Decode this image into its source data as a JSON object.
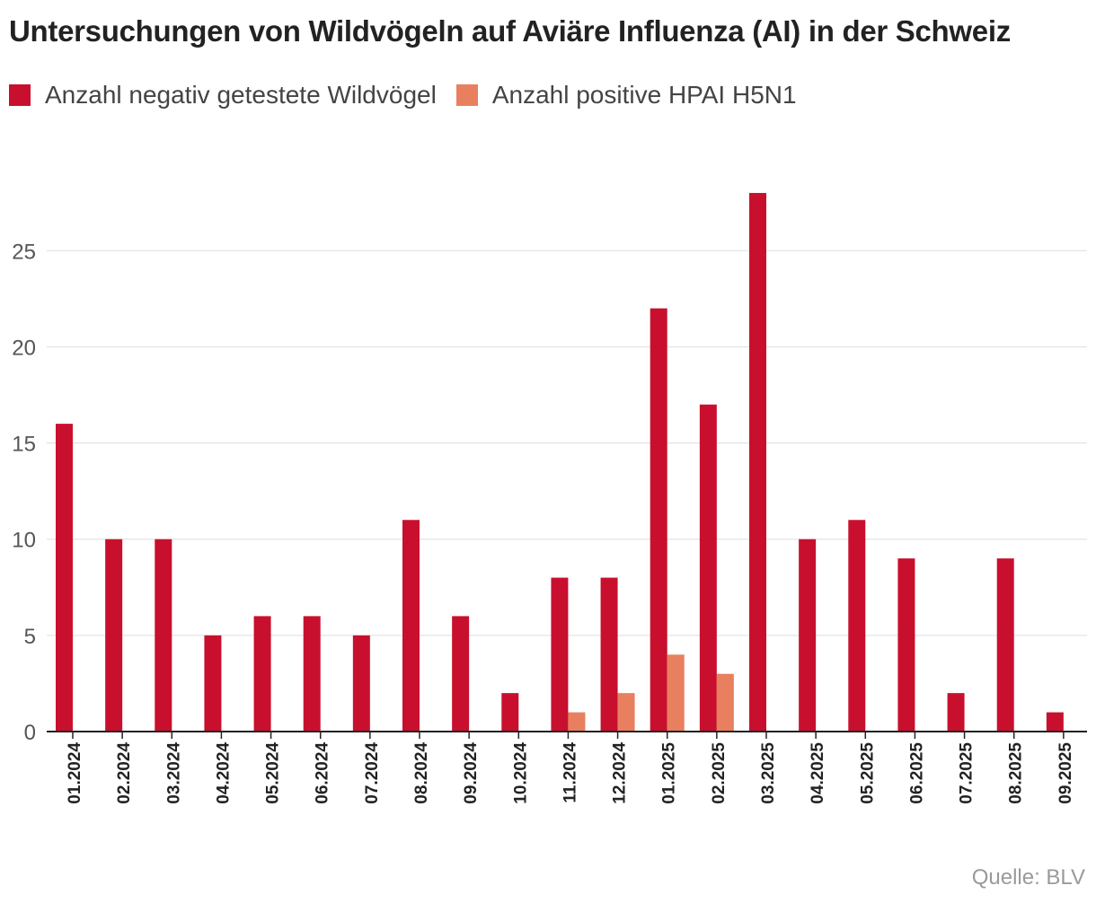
{
  "chart_data": {
    "type": "bar",
    "title": "Untersuchungen von Wildvögeln auf Aviäre Influenza (AI) in der Schweiz",
    "categories": [
      "01.2024",
      "02.2024",
      "03.2024",
      "04.2024",
      "05.2024",
      "06.2024",
      "07.2024",
      "08.2024",
      "09.2024",
      "10.2024",
      "11.2024",
      "12.2024",
      "01.2025",
      "02.2025",
      "03.2025",
      "04.2025",
      "05.2025",
      "06.2025",
      "07.2025",
      "08.2025",
      "09.2025"
    ],
    "series": [
      {
        "name": "Anzahl negativ getestete Wildvögel",
        "color": "#c8102e",
        "values": [
          16,
          10,
          10,
          5,
          6,
          6,
          5,
          11,
          6,
          2,
          8,
          8,
          22,
          17,
          28,
          10,
          11,
          9,
          2,
          9,
          1
        ]
      },
      {
        "name": "Anzahl positive HPAI H5N1",
        "color": "#e8805f",
        "values": [
          0,
          0,
          0,
          0,
          0,
          0,
          0,
          0,
          0,
          0,
          1,
          2,
          4,
          3,
          0,
          0,
          0,
          0,
          0,
          0,
          0
        ]
      }
    ],
    "yticks": [
      0,
      5,
      10,
      15,
      20,
      25
    ],
    "ylim": [
      0,
      28
    ],
    "grid": true,
    "legend": "top-left"
  },
  "source": "Quelle: BLV"
}
